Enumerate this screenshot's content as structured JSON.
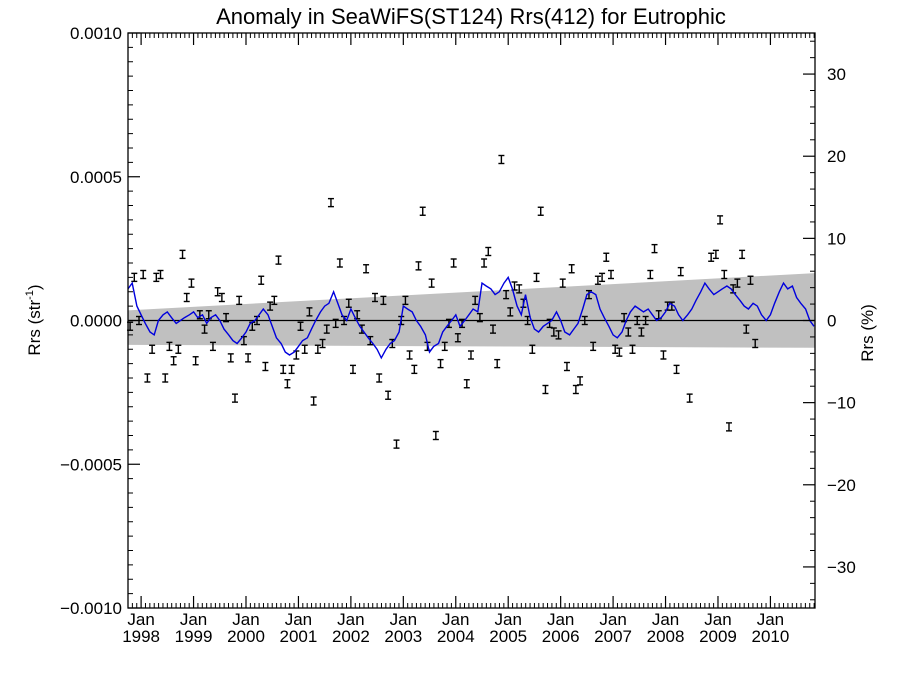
{
  "chart_data": {
    "type": "scatter",
    "title": "Anomaly in SeaWiFS(ST124) Rrs(412) for Eutrophic",
    "ylabel": "Rrs (str",
    "ylabel_sup": "-1",
    "ylabel_close": ")",
    "y2label": "Rrs (%)",
    "xlim": [
      1997.75,
      2010.85
    ],
    "ylim": [
      -0.001,
      0.001
    ],
    "y2lim": [
      -35,
      35
    ],
    "y_ticks": [
      -0.001,
      -0.0005,
      0.0,
      0.0005,
      0.001
    ],
    "y_tick_labels": [
      "−0.0010",
      "−0.0005",
      "0.0000",
      "0.0005",
      "0.0010"
    ],
    "y2_ticks": [
      -30,
      -20,
      -10,
      0,
      10,
      20,
      30
    ],
    "y2_tick_labels": [
      "−30",
      "−20",
      "−10",
      "0",
      "10",
      "20",
      "30"
    ],
    "x_ticks": [
      1998,
      1999,
      2000,
      2001,
      2002,
      2003,
      2004,
      2005,
      2006,
      2007,
      2008,
      2009,
      2010
    ],
    "x_tick_months": [
      "Jan",
      "Jan",
      "Jan",
      "Jan",
      "Jan",
      "Jan",
      "Jan",
      "Jan",
      "Jan",
      "Jan",
      "Jan",
      "Jan",
      "Jan"
    ],
    "x_tick_years": [
      "1998",
      "1999",
      "2000",
      "2001",
      "2002",
      "2003",
      "2004",
      "2005",
      "2006",
      "2007",
      "2008",
      "2009",
      "2010"
    ],
    "band_upper": [
      [
        1997.75,
        3.5e-05
      ],
      [
        2010.85,
        0.000165
      ]
    ],
    "band_lower": [
      [
        1997.75,
        -8.5e-05
      ],
      [
        2010.85,
        -9.5e-05
      ]
    ],
    "zero_line": 0.0,
    "colors": {
      "series": "#0000dd",
      "band": "#c0c0c0",
      "points": "#000000"
    },
    "points": [
      [
        1997.79,
        -2e-05
      ],
      [
        1997.87,
        0.00015
      ],
      [
        1997.96,
        0.0
      ],
      [
        1998.04,
        0.00016
      ],
      [
        1998.12,
        -0.0002
      ],
      [
        1998.21,
        -0.0001
      ],
      [
        1998.29,
        0.00015
      ],
      [
        1998.37,
        0.00016
      ],
      [
        1998.46,
        -0.0002
      ],
      [
        1998.54,
        -9e-05
      ],
      [
        1998.62,
        -0.00014
      ],
      [
        1998.71,
        -0.0001
      ],
      [
        1998.79,
        0.00023
      ],
      [
        1998.87,
        8e-05
      ],
      [
        1998.96,
        0.00013
      ],
      [
        1999.04,
        -0.00014
      ],
      [
        1999.12,
        2e-05
      ],
      [
        1999.21,
        -3e-05
      ],
      [
        1999.29,
        2e-05
      ],
      [
        1999.37,
        -9e-05
      ],
      [
        1999.46,
        0.0001
      ],
      [
        1999.54,
        8e-05
      ],
      [
        1999.62,
        1e-05
      ],
      [
        1999.71,
        -0.00013
      ],
      [
        1999.79,
        -0.00027
      ],
      [
        1999.87,
        7e-05
      ],
      [
        1999.96,
        -7e-05
      ],
      [
        2000.04,
        -0.00013
      ],
      [
        2000.12,
        -2e-05
      ],
      [
        2000.21,
        0.0
      ],
      [
        2000.29,
        0.00014
      ],
      [
        2000.37,
        -0.00016
      ],
      [
        2000.46,
        5e-05
      ],
      [
        2000.54,
        7e-05
      ],
      [
        2000.62,
        0.00021
      ],
      [
        2000.71,
        -0.00017
      ],
      [
        2000.79,
        -0.00022
      ],
      [
        2000.87,
        -0.00017
      ],
      [
        2000.96,
        -0.00012
      ],
      [
        2001.04,
        -2e-05
      ],
      [
        2001.12,
        -0.0001
      ],
      [
        2001.21,
        3e-05
      ],
      [
        2001.29,
        -0.00028
      ],
      [
        2001.37,
        -0.0001
      ],
      [
        2001.46,
        -8e-05
      ],
      [
        2001.54,
        -3e-05
      ],
      [
        2001.62,
        0.00041
      ],
      [
        2001.71,
        -1e-05
      ],
      [
        2001.79,
        0.0002
      ],
      [
        2001.87,
        0.0
      ],
      [
        2001.96,
        6e-05
      ],
      [
        2002.04,
        -0.00017
      ],
      [
        2002.12,
        2e-05
      ],
      [
        2002.21,
        -3e-05
      ],
      [
        2002.29,
        0.00018
      ],
      [
        2002.37,
        -7e-05
      ],
      [
        2002.46,
        8e-05
      ],
      [
        2002.54,
        -0.0002
      ],
      [
        2002.62,
        7e-05
      ],
      [
        2002.71,
        -0.00026
      ],
      [
        2002.79,
        -8e-05
      ],
      [
        2002.87,
        -0.00043
      ],
      [
        2002.96,
        0.0
      ],
      [
        2003.04,
        7e-05
      ],
      [
        2003.12,
        -0.00012
      ],
      [
        2003.21,
        -0.00017
      ],
      [
        2003.29,
        0.00019
      ],
      [
        2003.37,
        0.00038
      ],
      [
        2003.46,
        -9e-05
      ],
      [
        2003.54,
        0.00013
      ],
      [
        2003.62,
        -0.0004
      ],
      [
        2003.71,
        -0.00015
      ],
      [
        2003.79,
        -9e-05
      ],
      [
        2003.87,
        -1e-05
      ],
      [
        2003.96,
        0.0002
      ],
      [
        2004.04,
        -6e-05
      ],
      [
        2004.12,
        -1e-05
      ],
      [
        2004.21,
        -0.00022
      ],
      [
        2004.29,
        -0.00012
      ],
      [
        2004.37,
        7e-05
      ],
      [
        2004.46,
        1e-05
      ],
      [
        2004.54,
        0.0002
      ],
      [
        2004.62,
        0.00024
      ],
      [
        2004.71,
        -3e-05
      ],
      [
        2004.79,
        -0.00015
      ],
      [
        2004.87,
        0.00056
      ],
      [
        2004.96,
        9e-05
      ],
      [
        2005.04,
        3e-05
      ],
      [
        2005.12,
        0.00012
      ],
      [
        2005.21,
        0.00011
      ],
      [
        2005.29,
        6e-05
      ],
      [
        2005.37,
        0.0
      ],
      [
        2005.46,
        -0.0001
      ],
      [
        2005.54,
        0.00015
      ],
      [
        2005.62,
        0.00038
      ],
      [
        2005.71,
        -0.00024
      ],
      [
        2005.79,
        -1e-05
      ],
      [
        2005.87,
        -4e-05
      ],
      [
        2005.96,
        -5e-05
      ],
      [
        2006.04,
        0.00013
      ],
      [
        2006.12,
        -0.00016
      ],
      [
        2006.21,
        0.00018
      ],
      [
        2006.29,
        -0.00024
      ],
      [
        2006.37,
        -0.00021
      ],
      [
        2006.46,
        0.0
      ],
      [
        2006.54,
        9e-05
      ],
      [
        2006.62,
        -9e-05
      ],
      [
        2006.71,
        0.00014
      ],
      [
        2006.79,
        0.00015
      ],
      [
        2006.87,
        0.00022
      ],
      [
        2006.96,
        0.00016
      ],
      [
        2007.04,
        -0.0001
      ],
      [
        2007.12,
        -0.00011
      ],
      [
        2007.21,
        1e-05
      ],
      [
        2007.29,
        -4e-05
      ],
      [
        2007.37,
        -0.0001
      ],
      [
        2007.46,
        0.0
      ],
      [
        2007.54,
        -4e-05
      ],
      [
        2007.62,
        0.0
      ],
      [
        2007.71,
        0.00016
      ],
      [
        2007.79,
        0.00025
      ],
      [
        2007.87,
        2e-05
      ],
      [
        2007.96,
        -0.00012
      ],
      [
        2008.04,
        5e-05
      ],
      [
        2008.12,
        5e-05
      ],
      [
        2008.21,
        -0.00017
      ],
      [
        2008.29,
        0.00017
      ],
      [
        2008.46,
        -0.00027
      ],
      [
        2008.87,
        0.00022
      ],
      [
        2008.96,
        0.00023
      ],
      [
        2009.04,
        0.00035
      ],
      [
        2009.12,
        0.00016
      ],
      [
        2009.21,
        -0.00037
      ],
      [
        2009.29,
        0.00011
      ],
      [
        2009.37,
        0.00013
      ],
      [
        2009.46,
        0.00023
      ],
      [
        2009.54,
        -3e-05
      ],
      [
        2009.62,
        0.00014
      ],
      [
        2009.71,
        -8e-05
      ]
    ],
    "series": [
      {
        "values": [
          [
            1997.75,
            0.00011
          ],
          [
            1997.83,
            0.00013
          ],
          [
            1997.92,
            5e-05
          ],
          [
            1998.0,
            2e-05
          ],
          [
            1998.08,
            -1e-05
          ],
          [
            1998.17,
            -4e-05
          ],
          [
            1998.25,
            -5e-05
          ],
          [
            1998.33,
            0.0
          ],
          [
            1998.42,
            2e-05
          ],
          [
            1998.5,
            3e-05
          ],
          [
            1998.58,
            1e-05
          ],
          [
            1998.67,
            -1e-05
          ],
          [
            1998.75,
            0.0
          ],
          [
            1998.83,
            1e-05
          ],
          [
            1998.92,
            2e-05
          ],
          [
            1999.0,
            3e-05
          ],
          [
            1999.08,
            1e-05
          ],
          [
            1999.17,
            2e-05
          ],
          [
            1999.25,
            -1e-05
          ],
          [
            1999.33,
            1e-05
          ],
          [
            1999.42,
            2e-05
          ],
          [
            1999.5,
            0.0
          ],
          [
            1999.58,
            -3e-05
          ],
          [
            1999.67,
            -5e-05
          ],
          [
            1999.75,
            -7e-05
          ],
          [
            1999.83,
            -8e-05
          ],
          [
            1999.92,
            -6e-05
          ],
          [
            2000.0,
            -4e-05
          ],
          [
            2000.08,
            -1e-05
          ],
          [
            2000.17,
            0.0
          ],
          [
            2000.25,
            2e-05
          ],
          [
            2000.33,
            4e-05
          ],
          [
            2000.42,
            2e-05
          ],
          [
            2000.5,
            -2e-05
          ],
          [
            2000.58,
            -6e-05
          ],
          [
            2000.67,
            -8e-05
          ],
          [
            2000.75,
            -0.00011
          ],
          [
            2000.83,
            -0.00012
          ],
          [
            2000.92,
            -0.00011
          ],
          [
            2001.0,
            -9e-05
          ],
          [
            2001.08,
            -7e-05
          ],
          [
            2001.17,
            -6e-05
          ],
          [
            2001.25,
            -3e-05
          ],
          [
            2001.33,
            0.0
          ],
          [
            2001.42,
            3e-05
          ],
          [
            2001.5,
            5e-05
          ],
          [
            2001.58,
            6e-05
          ],
          [
            2001.67,
            0.0001
          ],
          [
            2001.75,
            6e-05
          ],
          [
            2001.83,
            2e-05
          ],
          [
            2001.92,
            0.0
          ],
          [
            2002.0,
            4e-05
          ],
          [
            2002.08,
            1e-05
          ],
          [
            2002.17,
            -2e-05
          ],
          [
            2002.25,
            -4e-05
          ],
          [
            2002.33,
            -6e-05
          ],
          [
            2002.42,
            -8e-05
          ],
          [
            2002.5,
            -0.0001
          ],
          [
            2002.58,
            -0.00013
          ],
          [
            2002.67,
            -0.0001
          ],
          [
            2002.75,
            -8e-05
          ],
          [
            2002.83,
            -7e-05
          ],
          [
            2002.92,
            -4e-05
          ],
          [
            2003.0,
            5e-05
          ],
          [
            2003.08,
            4e-05
          ],
          [
            2003.17,
            3e-05
          ],
          [
            2003.25,
            0.0
          ],
          [
            2003.33,
            -2e-05
          ],
          [
            2003.42,
            -5e-05
          ],
          [
            2003.5,
            -0.00011
          ],
          [
            2003.58,
            -9e-05
          ],
          [
            2003.67,
            -8e-05
          ],
          [
            2003.75,
            -4e-05
          ],
          [
            2003.83,
            -2e-05
          ],
          [
            2003.92,
            0.0
          ],
          [
            2004.0,
            2e-05
          ],
          [
            2004.08,
            -2e-05
          ],
          [
            2004.17,
            0.0
          ],
          [
            2004.25,
            2e-05
          ],
          [
            2004.33,
            4e-05
          ],
          [
            2004.42,
            3e-05
          ],
          [
            2004.5,
            0.00013
          ],
          [
            2004.58,
            0.00012
          ],
          [
            2004.67,
            0.00011
          ],
          [
            2004.75,
            9e-05
          ],
          [
            2004.83,
            0.0001
          ],
          [
            2004.92,
            0.00013
          ],
          [
            2005.0,
            0.00015
          ],
          [
            2005.08,
            0.00011
          ],
          [
            2005.17,
            5e-05
          ],
          [
            2005.25,
            2e-05
          ],
          [
            2005.33,
            9e-05
          ],
          [
            2005.42,
            1e-05
          ],
          [
            2005.5,
            -3e-05
          ],
          [
            2005.58,
            -4e-05
          ],
          [
            2005.67,
            -2e-05
          ],
          [
            2005.75,
            -1e-05
          ],
          [
            2005.83,
            0.0
          ],
          [
            2005.92,
            3e-05
          ],
          [
            2006.0,
            0.0
          ],
          [
            2006.08,
            -4e-05
          ],
          [
            2006.17,
            -5e-05
          ],
          [
            2006.25,
            -3e-05
          ],
          [
            2006.33,
            -1e-05
          ],
          [
            2006.42,
            4e-05
          ],
          [
            2006.5,
            9e-05
          ],
          [
            2006.58,
            0.0001
          ],
          [
            2006.67,
            9e-05
          ],
          [
            2006.75,
            4e-05
          ],
          [
            2006.83,
            1e-05
          ],
          [
            2006.92,
            -2e-05
          ],
          [
            2007.0,
            -5e-05
          ],
          [
            2007.08,
            -6e-05
          ],
          [
            2007.17,
            -4e-05
          ],
          [
            2007.25,
            0.0
          ],
          [
            2007.33,
            3e-05
          ],
          [
            2007.42,
            5e-05
          ],
          [
            2007.5,
            4e-05
          ],
          [
            2007.58,
            3e-05
          ],
          [
            2007.67,
            4e-05
          ],
          [
            2007.75,
            2e-05
          ],
          [
            2007.83,
            0.0
          ],
          [
            2007.92,
            1e-05
          ],
          [
            2008.0,
            3e-05
          ],
          [
            2008.08,
            6e-05
          ],
          [
            2008.17,
            5e-05
          ],
          [
            2008.25,
            2e-05
          ],
          [
            2008.33,
            0.0
          ],
          [
            2008.42,
            2e-05
          ],
          [
            2008.5,
            4e-05
          ],
          [
            2008.58,
            7e-05
          ],
          [
            2008.67,
            0.0001
          ],
          [
            2008.75,
            0.00013
          ],
          [
            2008.83,
            0.00011
          ],
          [
            2008.92,
            9e-05
          ],
          [
            2009.0,
            0.0001
          ],
          [
            2009.08,
            0.00011
          ],
          [
            2009.17,
            0.00012
          ],
          [
            2009.25,
            0.00011
          ],
          [
            2009.33,
            9e-05
          ],
          [
            2009.42,
            7e-05
          ],
          [
            2009.5,
            5e-05
          ],
          [
            2009.58,
            4e-05
          ],
          [
            2009.67,
            6e-05
          ],
          [
            2009.75,
            5e-05
          ],
          [
            2009.83,
            2e-05
          ],
          [
            2009.92,
            0.0
          ],
          [
            2010.0,
            2e-05
          ],
          [
            2010.08,
            6e-05
          ],
          [
            2010.17,
            0.0001
          ],
          [
            2010.25,
            0.00013
          ],
          [
            2010.33,
            0.00011
          ],
          [
            2010.42,
            0.00012
          ],
          [
            2010.5,
            8e-05
          ],
          [
            2010.58,
            6e-05
          ],
          [
            2010.67,
            4e-05
          ],
          [
            2010.75,
            0.0
          ],
          [
            2010.83,
            -2e-05
          ]
        ]
      }
    ]
  }
}
